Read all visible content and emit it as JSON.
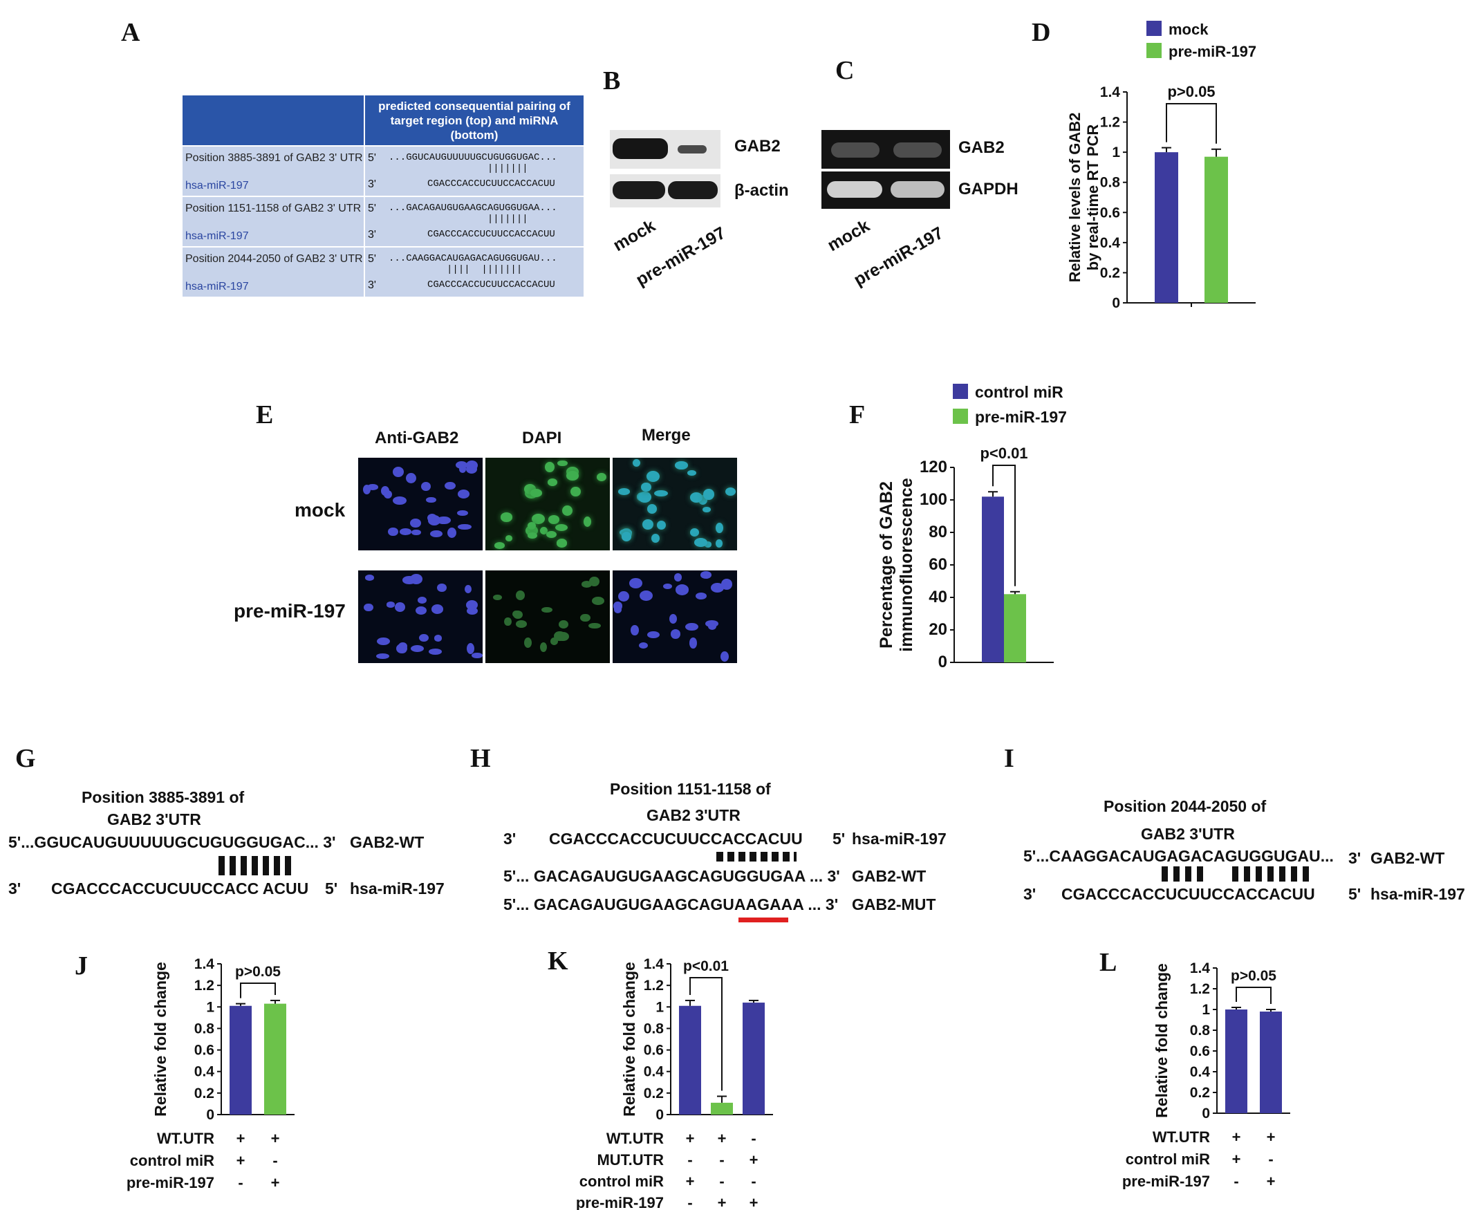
{
  "panel_labels": {
    "A": "A",
    "B": "B",
    "C": "C",
    "D": "D",
    "E": "E",
    "F": "F",
    "G": "G",
    "H": "H",
    "I": "I",
    "J": "J",
    "K": "K",
    "L": "L"
  },
  "panelA": {
    "header_left": "",
    "header_right_1": "predicted consequential pairing of",
    "header_right_2": "target region (top) and miRNA (bottom)",
    "rows": [
      {
        "position": "Position 3885-3891 of GAB2 3' UTR",
        "mirna": "hsa-miR-197",
        "five": "5'",
        "three": "3'",
        "target": "...GGUCAUGUUUUUGCUGUGGUGAC...",
        "bars": "                 |||||||",
        "mirseq": "CGACCCACCUCUUCCACCACUU"
      },
      {
        "position": "Position 1151-1158 of GAB2 3' UTR",
        "mirna": "hsa-miR-197",
        "five": "5'",
        "three": "3'",
        "target": "...GACAGAUGUGAAGCAGUGGUGAA...",
        "bars": "                 |||||||",
        "mirseq": "CGACCCACCUCUUCCACCACUU"
      },
      {
        "position": "Position 2044-2050 of GAB2 3' UTR",
        "mirna": "hsa-miR-197",
        "five": "5'",
        "three": "3'",
        "target": "...CAAGGACAUGAGACAGUGGUGAU...",
        "bars": "          ||||  |||||||",
        "mirseq": "CGACCCACCUCUUCCACCACUU"
      }
    ]
  },
  "panelB": {
    "band_top": "GAB2",
    "band_bottom": "β-actin",
    "lane1": "mock",
    "lane2": "pre-miR-197"
  },
  "panelC": {
    "band_top": "GAB2",
    "band_bottom": "GAPDH",
    "lane1": "mock",
    "lane2": "pre-miR-197"
  },
  "panelE": {
    "col1": "Anti-GAB2",
    "col2": "DAPI",
    "col3": "Merge",
    "row1": "mock",
    "row2": "pre-miR-197"
  },
  "panelG": {
    "title1": "Position 3885-3891 of",
    "title2": "GAB2 3'UTR",
    "top": "5'...GGUCAUGUUUUUGCUGUGGUGAC... 3'",
    "top_label": "GAB2-WT",
    "bottom_pre": "3'",
    "bottom": "CGACCCACCUCUUCCACC ACUU",
    "bottom_post": "5'",
    "bottom_label": "hsa-miR-197"
  },
  "panelH": {
    "title1": "Position 1151-1158 of",
    "title2": "GAB2 3'UTR",
    "row1_pre": "3'",
    "row1": "CGACCCACCUCUUCCACCACUU",
    "row1_post": "5'",
    "row1_label": "hsa-miR-197",
    "row2": "5'... GACAGAUGUGAAGCAGUGGUGAA ... 3'",
    "row2_label": "GAB2-WT",
    "row3_a": "5'... GACAGAUGUGAAGCAGU",
    "row3_b": "AAGAAA",
    "row3_c": " ... 3'",
    "row3_label": "GAB2-MUT"
  },
  "panelI": {
    "title1": "Position 2044-2050 of",
    "title2": "GAB2 3'UTR",
    "top": "5'...CAAGGACAUGAGACAGUGGUGAU...",
    "top_post": "3'",
    "top_label": "GAB2-WT",
    "bottom_pre": "3'",
    "bottom": "CGACCCACCUCUUCCACCACUU",
    "bottom_post": "5'",
    "bottom_label": "hsa-miR-197"
  },
  "colors": {
    "blue": "#3d3b9e",
    "green": "#6cc24a",
    "table_header": "#2a55a8",
    "table_cell": "#c7d3ea",
    "red_underline": "#e02020"
  },
  "chart_data": [
    {
      "id": "D",
      "type": "bar",
      "categories": [
        "mock",
        "pre-miR-197"
      ],
      "values": [
        1.0,
        0.97
      ],
      "errors": [
        0.03,
        0.05
      ],
      "colors": [
        "#3d3b9e",
        "#6cc24a"
      ],
      "legend": [
        "mock",
        "pre-miR-197"
      ],
      "ylabel": [
        "Relative levels of GAB2",
        "by real-time RT PCR"
      ],
      "ylim": [
        0,
        1.4
      ],
      "yticks": [
        "0",
        "0.2",
        "0.4",
        "0.6",
        "0.8",
        "1",
        "1.2",
        "1.4"
      ],
      "annotation": "p>0.05"
    },
    {
      "id": "F",
      "type": "bar",
      "categories": [
        "control miR",
        "pre-miR-197"
      ],
      "values": [
        102,
        42
      ],
      "errors": [
        3,
        1.5
      ],
      "colors": [
        "#3d3b9e",
        "#6cc24a"
      ],
      "legend": [
        "control miR",
        "pre-miR-197"
      ],
      "ylabel": [
        "Percentage of GAB2",
        "immunofluorescence"
      ],
      "ylim": [
        0,
        120
      ],
      "yticks": [
        "0",
        "20",
        "40",
        "60",
        "80",
        "100",
        "120"
      ],
      "annotation": "p<0.01"
    },
    {
      "id": "J",
      "type": "bar",
      "values": [
        1.01,
        1.03
      ],
      "errors": [
        0.02,
        0.03
      ],
      "colors": [
        "#3d3b9e",
        "#6cc24a"
      ],
      "ylabel": [
        "Relative fold change"
      ],
      "ylim": [
        0,
        1.4
      ],
      "yticks": [
        "0",
        "0.2",
        "0.4",
        "0.6",
        "0.8",
        "1",
        "1.2",
        "1.4"
      ],
      "annotation": "p>0.05",
      "table": [
        {
          "label": "WT.UTR",
          "marks": [
            "+",
            "+"
          ]
        },
        {
          "label": "control miR",
          "marks": [
            "+",
            "-"
          ]
        },
        {
          "label": "pre-miR-197",
          "marks": [
            "-",
            "+"
          ]
        }
      ]
    },
    {
      "id": "K",
      "type": "bar",
      "values": [
        1.01,
        0.11,
        1.04
      ],
      "errors": [
        0.05,
        0.06,
        0.02
      ],
      "colors": [
        "#3d3b9e",
        "#6cc24a",
        "#3d3b9e"
      ],
      "ylabel": [
        "Relative fold change"
      ],
      "ylim": [
        0,
        1.4
      ],
      "yticks": [
        "0",
        "0.2",
        "0.4",
        "0.6",
        "0.8",
        "1",
        "1.2",
        "1.4"
      ],
      "annotation": "p<0.01",
      "table": [
        {
          "label": "WT.UTR",
          "marks": [
            "+",
            "+",
            "-"
          ]
        },
        {
          "label": "MUT.UTR",
          "marks": [
            "-",
            "-",
            "+"
          ]
        },
        {
          "label": "control miR",
          "marks": [
            "+",
            "-",
            "-"
          ]
        },
        {
          "label": "pre-miR-197",
          "marks": [
            "-",
            "+",
            "+"
          ]
        }
      ]
    },
    {
      "id": "L",
      "type": "bar",
      "values": [
        1.0,
        0.98
      ],
      "errors": [
        0.02,
        0.02
      ],
      "colors": [
        "#3d3b9e",
        "#3d3b9e"
      ],
      "ylabel": [
        "Relative fold change"
      ],
      "ylim": [
        0,
        1.4
      ],
      "yticks": [
        "0",
        "0.2",
        "0.4",
        "0.6",
        "0.8",
        "1",
        "1.2",
        "1.4"
      ],
      "annotation": "p>0.05",
      "table": [
        {
          "label": "WT.UTR",
          "marks": [
            "+",
            "+"
          ]
        },
        {
          "label": "control miR",
          "marks": [
            "+",
            "-"
          ]
        },
        {
          "label": "pre-miR-197",
          "marks": [
            "-",
            "+"
          ]
        }
      ]
    }
  ]
}
